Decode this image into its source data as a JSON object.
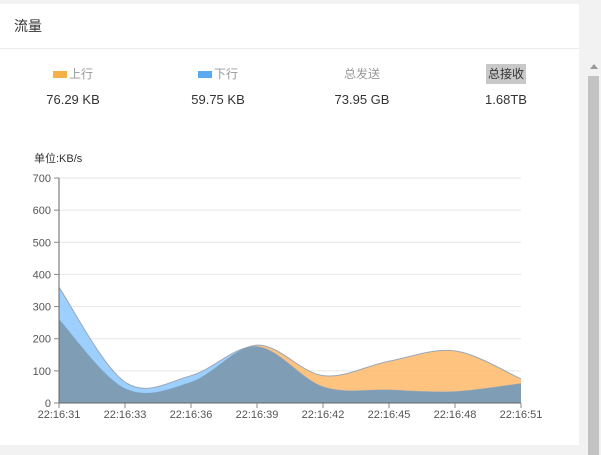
{
  "panel": {
    "title": "流量"
  },
  "stats": [
    {
      "label": "上行",
      "value": "76.29 KB",
      "swatch": "#f5b04a"
    },
    {
      "label": "下行",
      "value": "59.75 KB",
      "swatch": "#5aaaf2"
    },
    {
      "label": "总发送",
      "value": "73.95 GB"
    },
    {
      "label": "总接收",
      "value": "1.68TB"
    }
  ],
  "chart_data": {
    "type": "area",
    "unit_label": "单位:KB/s",
    "x": [
      "22:16:31",
      "22:16:33",
      "22:16:36",
      "22:16:39",
      "22:16:42",
      "22:16:45",
      "22:16:48",
      "22:16:51"
    ],
    "ylim": [
      0,
      700
    ],
    "yticks": [
      0,
      100,
      200,
      300,
      400,
      500,
      600,
      700
    ],
    "grid": true,
    "series": [
      {
        "name": "上行",
        "color": "#ffb96a",
        "values": [
          260,
          45,
          65,
          180,
          85,
          130,
          162,
          75
        ]
      },
      {
        "name": "下行",
        "color": "#8cc8ff",
        "values": [
          360,
          65,
          85,
          175,
          50,
          40,
          35,
          60
        ]
      }
    ]
  }
}
